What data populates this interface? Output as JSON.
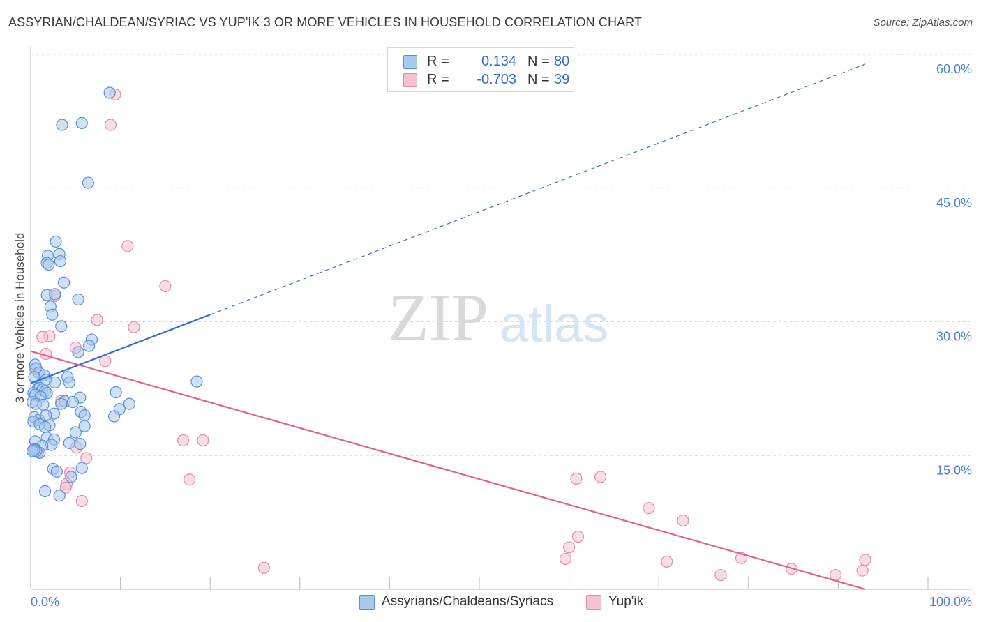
{
  "title": "ASSYRIAN/CHALDEAN/SYRIAC VS YUP'IK 3 OR MORE VEHICLES IN HOUSEHOLD CORRELATION CHART",
  "source": "Source: ZipAtlas.com",
  "watermark": {
    "zip": "ZIP",
    "atlas": "atlas"
  },
  "legend": {
    "rows": [
      {
        "r_label": "R =",
        "r_value": "0.134",
        "n_label": "N =",
        "n_value": "80"
      },
      {
        "r_label": "R =",
        "r_value": "-0.703",
        "n_label": "N =",
        "n_value": "39"
      }
    ]
  },
  "bottom_legend": {
    "series1": "Assyrians/Chaldeans/Syriacs",
    "series2": "Yup'ik"
  },
  "colors": {
    "series1_fill": "#a8c8f0",
    "series1_stroke": "#5a8fd6",
    "series1_line": "#2f6fcf",
    "series2_fill": "#f6c1d1",
    "series2_stroke": "#e58aa8",
    "series2_line": "#e0628f",
    "grid": "#d9d9d9",
    "tick": "#4a7fd1"
  },
  "chart_data": {
    "type": "scatter",
    "title": "ASSYRIAN/CHALDEAN/SYRIAC VS YUP'IK 3 OR MORE VEHICLES IN HOUSEHOLD CORRELATION CHART",
    "xlabel": "",
    "ylabel": "3 or more Vehicles in Household",
    "xlim": [
      0,
      100
    ],
    "ylim": [
      0,
      60
    ],
    "x_tick_labels": [
      "0.0%",
      "100.0%"
    ],
    "y_ticks": [
      {
        "value": 15,
        "label": "15.0%"
      },
      {
        "value": 30,
        "label": "30.0%"
      },
      {
        "value": 45,
        "label": "45.0%"
      },
      {
        "value": 60,
        "label": "60.0%"
      }
    ],
    "grid": true,
    "legend_position": "top-center",
    "series": [
      {
        "name": "Assyrians/Chaldeans/Syriacs",
        "r": 0.134,
        "n": 80,
        "trend": {
          "x_solid": [
            0,
            20
          ],
          "x_dashed": [
            20,
            93
          ],
          "intercept": 23.1,
          "slope": 0.385
        },
        "points": [
          [
            8.8,
            55.7
          ],
          [
            3.5,
            52.1
          ],
          [
            5.7,
            52.3
          ],
          [
            6.4,
            45.6
          ],
          [
            2.8,
            39.0
          ],
          [
            3.2,
            37.6
          ],
          [
            1.9,
            37.4
          ],
          [
            3.3,
            36.8
          ],
          [
            1.8,
            36.6
          ],
          [
            2.0,
            36.4
          ],
          [
            3.7,
            34.4
          ],
          [
            1.8,
            33.0
          ],
          [
            2.7,
            33.1
          ],
          [
            5.3,
            32.5
          ],
          [
            2.2,
            31.7
          ],
          [
            2.4,
            30.8
          ],
          [
            3.4,
            29.5
          ],
          [
            6.8,
            28.0
          ],
          [
            6.5,
            27.3
          ],
          [
            5.3,
            26.6
          ],
          [
            0.5,
            25.2
          ],
          [
            0.6,
            24.8
          ],
          [
            0.9,
            24.3
          ],
          [
            1.5,
            24.0
          ],
          [
            0.4,
            23.8
          ],
          [
            1.7,
            23.5
          ],
          [
            2.7,
            23.2
          ],
          [
            4.1,
            23.8
          ],
          [
            4.3,
            23.2
          ],
          [
            18.5,
            23.3
          ],
          [
            0.8,
            22.5
          ],
          [
            1.0,
            22.6
          ],
          [
            1.3,
            22.4
          ],
          [
            1.6,
            22.2
          ],
          [
            1.8,
            22.0
          ],
          [
            0.3,
            22.0
          ],
          [
            0.5,
            21.8
          ],
          [
            1.1,
            21.6
          ],
          [
            9.5,
            22.1
          ],
          [
            5.5,
            21.5
          ],
          [
            3.8,
            21.1
          ],
          [
            4.7,
            21.0
          ],
          [
            0.2,
            21.0
          ],
          [
            0.6,
            20.8
          ],
          [
            1.4,
            20.7
          ],
          [
            3.4,
            20.8
          ],
          [
            11.0,
            20.8
          ],
          [
            9.9,
            20.2
          ],
          [
            5.6,
            19.9
          ],
          [
            6.0,
            19.5
          ],
          [
            0.4,
            19.3
          ],
          [
            0.9,
            19.0
          ],
          [
            2.6,
            19.7
          ],
          [
            1.7,
            19.5
          ],
          [
            9.3,
            19.4
          ],
          [
            0.3,
            18.8
          ],
          [
            1.0,
            18.5
          ],
          [
            2.1,
            18.4
          ],
          [
            1.6,
            18.2
          ],
          [
            6.0,
            18.3
          ],
          [
            5.0,
            17.6
          ],
          [
            1.8,
            17.0
          ],
          [
            2.6,
            16.8
          ],
          [
            0.5,
            16.6
          ],
          [
            4.3,
            16.4
          ],
          [
            2.3,
            16.2
          ],
          [
            1.3,
            16.1
          ],
          [
            5.5,
            16.3
          ],
          [
            0.5,
            15.7
          ],
          [
            0.8,
            15.4
          ],
          [
            1.0,
            15.3
          ],
          [
            0.6,
            15.5
          ],
          [
            0.4,
            15.6
          ],
          [
            2.5,
            13.5
          ],
          [
            2.9,
            13.2
          ],
          [
            5.7,
            13.6
          ],
          [
            4.5,
            12.6
          ],
          [
            1.6,
            11.0
          ],
          [
            3.2,
            10.5
          ],
          [
            0.2,
            15.5
          ]
        ]
      },
      {
        "name": "Yup'ik",
        "r": -0.703,
        "n": 39,
        "trend": {
          "x_solid": [
            0,
            93
          ],
          "intercept": 26.7,
          "slope": -0.287
        },
        "points": [
          [
            9.4,
            55.5
          ],
          [
            8.9,
            52.1
          ],
          [
            10.8,
            38.5
          ],
          [
            15.0,
            34.0
          ],
          [
            2.7,
            32.9
          ],
          [
            7.4,
            30.2
          ],
          [
            11.5,
            29.4
          ],
          [
            2.1,
            28.4
          ],
          [
            1.3,
            28.3
          ],
          [
            5.0,
            27.1
          ],
          [
            1.7,
            26.4
          ],
          [
            8.3,
            25.6
          ],
          [
            0.5,
            24.7
          ],
          [
            3.4,
            21.1
          ],
          [
            17.0,
            16.7
          ],
          [
            19.2,
            16.7
          ],
          [
            5.1,
            15.9
          ],
          [
            0.3,
            15.7
          ],
          [
            6.2,
            14.7
          ],
          [
            4.4,
            13.1
          ],
          [
            17.7,
            12.3
          ],
          [
            4.0,
            11.8
          ],
          [
            3.9,
            11.4
          ],
          [
            5.7,
            9.9
          ],
          [
            60.8,
            12.4
          ],
          [
            63.5,
            12.6
          ],
          [
            68.9,
            9.1
          ],
          [
            72.7,
            7.7
          ],
          [
            61.0,
            5.9
          ],
          [
            60.0,
            4.7
          ],
          [
            59.6,
            3.4
          ],
          [
            26.0,
            2.4
          ],
          [
            70.9,
            3.1
          ],
          [
            79.2,
            3.5
          ],
          [
            76.9,
            1.6
          ],
          [
            84.8,
            2.3
          ],
          [
            93.0,
            3.3
          ],
          [
            92.7,
            2.1
          ],
          [
            89.7,
            1.6
          ]
        ]
      }
    ]
  }
}
